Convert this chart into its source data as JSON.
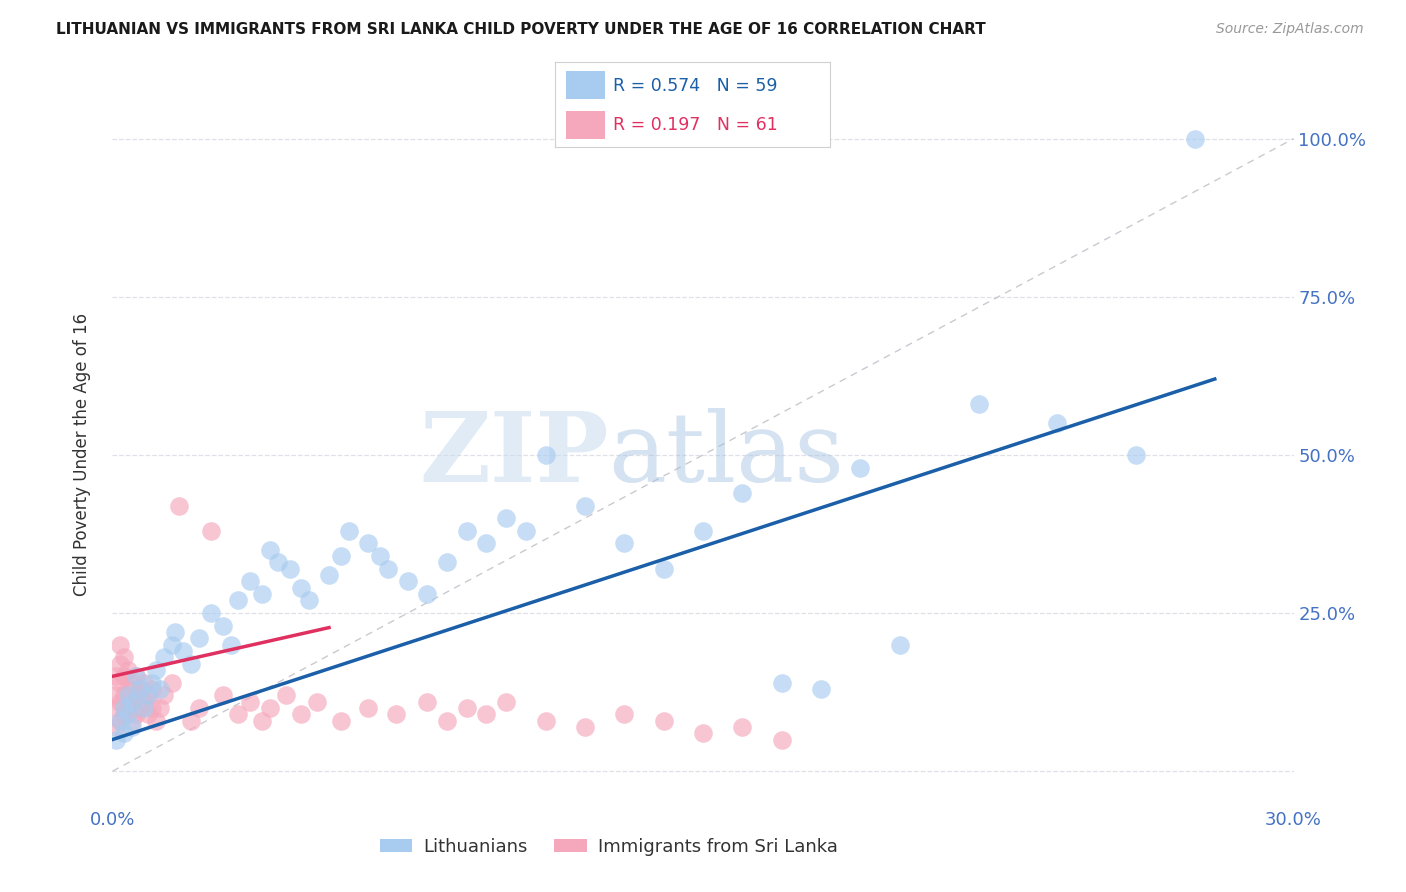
{
  "title": "LITHUANIAN VS IMMIGRANTS FROM SRI LANKA CHILD POVERTY UNDER THE AGE OF 16 CORRELATION CHART",
  "source": "Source: ZipAtlas.com",
  "ylabel": "Child Poverty Under the Age of 16",
  "xlim": [
    0.0,
    0.3
  ],
  "ylim": [
    -0.05,
    1.05
  ],
  "yticks": [
    0.0,
    0.25,
    0.5,
    0.75,
    1.0
  ],
  "right_ytick_labels": [
    "",
    "25.0%",
    "50.0%",
    "75.0%",
    "100.0%"
  ],
  "xticks": [
    0.0,
    0.05,
    0.1,
    0.15,
    0.2,
    0.25,
    0.3
  ],
  "xtick_labels": [
    "0.0%",
    "",
    "",
    "",
    "",
    "",
    "30.0%"
  ],
  "blue_scatter_color": "#A8CCF0",
  "pink_scatter_color": "#F5A8BC",
  "blue_line_color": "#1A5FA8",
  "pink_line_color": "#E03060",
  "diag_color": "#C0C0C8",
  "grid_color": "#E0E0E8",
  "r_blue": 0.574,
  "n_blue": 59,
  "r_pink": 0.197,
  "n_pink": 61,
  "watermark_zip": "ZIP",
  "watermark_atlas": "atlas",
  "title_color": "#1a1a1a",
  "ylabel_color": "#333333",
  "tick_color": "#4472C4",
  "source_color": "#999999",
  "legend_label_blue": "Lithuanians",
  "legend_label_pink": "Immigrants from Sri Lanka",
  "blue_scatter_x": [
    0.001,
    0.002,
    0.003,
    0.003,
    0.004,
    0.004,
    0.005,
    0.005,
    0.006,
    0.007,
    0.008,
    0.009,
    0.01,
    0.011,
    0.012,
    0.013,
    0.015,
    0.016,
    0.018,
    0.02,
    0.022,
    0.025,
    0.028,
    0.03,
    0.032,
    0.035,
    0.038,
    0.04,
    0.042,
    0.045,
    0.048,
    0.05,
    0.055,
    0.058,
    0.06,
    0.065,
    0.068,
    0.07,
    0.075,
    0.08,
    0.085,
    0.09,
    0.095,
    0.1,
    0.105,
    0.11,
    0.12,
    0.13,
    0.14,
    0.15,
    0.16,
    0.17,
    0.18,
    0.19,
    0.2,
    0.22,
    0.24,
    0.26,
    0.275
  ],
  "blue_scatter_y": [
    0.05,
    0.08,
    0.06,
    0.1,
    0.09,
    0.12,
    0.07,
    0.11,
    0.15,
    0.13,
    0.1,
    0.12,
    0.14,
    0.16,
    0.13,
    0.18,
    0.2,
    0.22,
    0.19,
    0.17,
    0.21,
    0.25,
    0.23,
    0.2,
    0.27,
    0.3,
    0.28,
    0.35,
    0.33,
    0.32,
    0.29,
    0.27,
    0.31,
    0.34,
    0.38,
    0.36,
    0.34,
    0.32,
    0.3,
    0.28,
    0.33,
    0.38,
    0.36,
    0.4,
    0.38,
    0.5,
    0.42,
    0.36,
    0.32,
    0.38,
    0.44,
    0.14,
    0.13,
    0.48,
    0.2,
    0.58,
    0.55,
    0.5,
    1.0
  ],
  "pink_scatter_x": [
    0.001,
    0.001,
    0.001,
    0.001,
    0.002,
    0.002,
    0.002,
    0.002,
    0.002,
    0.003,
    0.003,
    0.003,
    0.003,
    0.004,
    0.004,
    0.004,
    0.005,
    0.005,
    0.005,
    0.006,
    0.006,
    0.006,
    0.007,
    0.007,
    0.008,
    0.008,
    0.009,
    0.009,
    0.01,
    0.01,
    0.011,
    0.012,
    0.013,
    0.015,
    0.017,
    0.02,
    0.022,
    0.025,
    0.028,
    0.032,
    0.035,
    0.038,
    0.04,
    0.044,
    0.048,
    0.052,
    0.058,
    0.065,
    0.072,
    0.08,
    0.085,
    0.09,
    0.095,
    0.1,
    0.11,
    0.12,
    0.13,
    0.14,
    0.15,
    0.16,
    0.17
  ],
  "pink_scatter_y": [
    0.07,
    0.1,
    0.12,
    0.15,
    0.08,
    0.11,
    0.14,
    0.17,
    0.2,
    0.09,
    0.12,
    0.15,
    0.18,
    0.1,
    0.13,
    0.16,
    0.08,
    0.11,
    0.14,
    0.09,
    0.12,
    0.15,
    0.1,
    0.13,
    0.11,
    0.14,
    0.09,
    0.12,
    0.1,
    0.13,
    0.08,
    0.1,
    0.12,
    0.14,
    0.42,
    0.08,
    0.1,
    0.38,
    0.12,
    0.09,
    0.11,
    0.08,
    0.1,
    0.12,
    0.09,
    0.11,
    0.08,
    0.1,
    0.09,
    0.11,
    0.08,
    0.1,
    0.09,
    0.11,
    0.08,
    0.07,
    0.09,
    0.08,
    0.06,
    0.07,
    0.05
  ]
}
